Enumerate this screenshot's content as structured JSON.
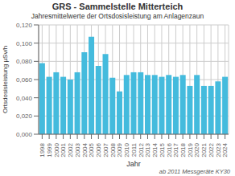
{
  "chart_data": {
    "type": "bar",
    "title": "GRS - Sammelstelle Mitterteich",
    "subtitle": "Jahresmittelwerte der Ortsdosisleistung am Anlagenzaun",
    "xlabel": "Jahr",
    "ylabel": "Ortsdosisleistung µSv/h",
    "annotation": "ab 2011 Messgeräte KY30",
    "categories": [
      "1998",
      "1999",
      "2000",
      "2001",
      "2002",
      "2003",
      "2004",
      "2005",
      "2006",
      "2007",
      "2008",
      "2009",
      "2010",
      "2011",
      "2012",
      "2013",
      "2014",
      "2015",
      "2016",
      "2017",
      "2018",
      "2019",
      "2020",
      "2021",
      "2022",
      "2023",
      "2024"
    ],
    "values": [
      0.078,
      0.063,
      0.068,
      0.063,
      0.06,
      0.068,
      0.09,
      0.107,
      0.075,
      0.088,
      0.062,
      0.047,
      0.065,
      0.068,
      0.068,
      0.065,
      0.065,
      0.063,
      0.065,
      0.063,
      0.065,
      0.053,
      0.065,
      0.053,
      0.053,
      0.058,
      0.063
    ],
    "color": "#44bbdd",
    "ylim": [
      0.0,
      0.12
    ],
    "yticks": [
      {
        "value": 0.0,
        "label": "0,000"
      },
      {
        "value": 0.02,
        "label": "0,020"
      },
      {
        "value": 0.04,
        "label": "0,040"
      },
      {
        "value": 0.06,
        "label": "0,060"
      },
      {
        "value": 0.08,
        "label": "0,080"
      },
      {
        "value": 0.1,
        "label": "0,100"
      },
      {
        "value": 0.12,
        "label": "0,120"
      }
    ],
    "grid": true
  }
}
